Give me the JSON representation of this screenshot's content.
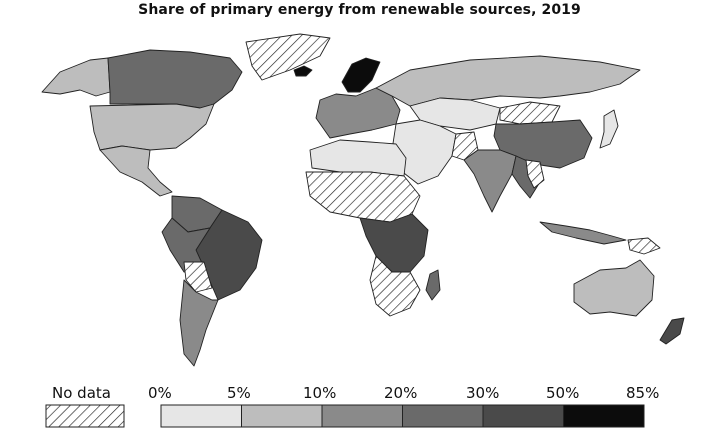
{
  "title": "Share of primary energy from renewable sources, 2019",
  "legend": {
    "no_data_label": "No data",
    "ticks": [
      "0%",
      "5%",
      "10%",
      "20%",
      "30%",
      "50%",
      "85%"
    ],
    "bins": [
      {
        "range": "0–5%",
        "color": "#e6e6e6"
      },
      {
        "range": "5–10%",
        "color": "#bdbdbd"
      },
      {
        "range": "10–20%",
        "color": "#8a8a8a"
      },
      {
        "range": "20–30%",
        "color": "#6a6a6a"
      },
      {
        "range": "30–50%",
        "color": "#4a4a4a"
      },
      {
        "range": "50–85%",
        "color": "#0c0c0c"
      }
    ]
  },
  "colors": {
    "ocean": "#ffffff",
    "border": "#222222",
    "no_data_hatch": "hatch-diagonal"
  }
}
